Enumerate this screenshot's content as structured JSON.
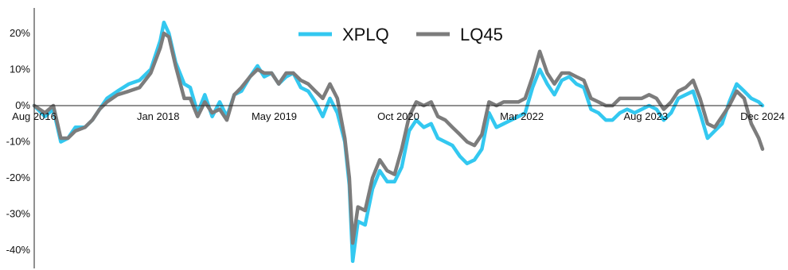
{
  "chart_data": {
    "type": "line",
    "title": "",
    "xlabel": "",
    "ylabel": "",
    "x_range": [
      "2016-08-01",
      "2024-12-01"
    ],
    "ylim": [
      -45,
      27
    ],
    "yticks": [
      20,
      10,
      0,
      -10,
      -20,
      -30,
      -40
    ],
    "ytick_labels": [
      "20%",
      "10%",
      "0%",
      "-10%",
      "-20%",
      "-30%",
      "-40%"
    ],
    "xticks": [
      "2016-08-01",
      "2018-01-01",
      "2019-05-01",
      "2020-10-01",
      "2022-03-01",
      "2023-08-01",
      "2024-12-01"
    ],
    "xtick_labels": [
      "Aug 2016",
      "Jan 2018",
      "May 2019",
      "Oct 2020",
      "Mar 2022",
      "Aug 2023",
      "Dec 2024"
    ],
    "grid": false,
    "legend_position": "top-center",
    "series": [
      {
        "name": "XPLQ",
        "color": "#33c8f0",
        "points": [
          [
            "2016-08-01",
            0
          ],
          [
            "2016-09-15",
            -3
          ],
          [
            "2016-10-20",
            -1
          ],
          [
            "2016-11-20",
            -10
          ],
          [
            "2016-12-20",
            -9
          ],
          [
            "2017-01-20",
            -6
          ],
          [
            "2017-03-01",
            -6
          ],
          [
            "2017-04-01",
            -4
          ],
          [
            "2017-05-01",
            -1
          ],
          [
            "2017-06-01",
            2
          ],
          [
            "2017-07-15",
            4
          ],
          [
            "2017-09-01",
            6
          ],
          [
            "2017-10-15",
            7
          ],
          [
            "2017-12-01",
            10
          ],
          [
            "2018-01-10",
            18
          ],
          [
            "2018-01-25",
            23
          ],
          [
            "2018-02-15",
            20
          ],
          [
            "2018-03-15",
            12
          ],
          [
            "2018-04-20",
            6
          ],
          [
            "2018-05-15",
            5
          ],
          [
            "2018-06-15",
            -2
          ],
          [
            "2018-07-15",
            3
          ],
          [
            "2018-08-15",
            -3
          ],
          [
            "2018-09-15",
            1
          ],
          [
            "2018-10-15",
            -3
          ],
          [
            "2018-11-15",
            3
          ],
          [
            "2018-12-15",
            4
          ],
          [
            "2019-01-20",
            8
          ],
          [
            "2019-02-20",
            11
          ],
          [
            "2019-03-20",
            8
          ],
          [
            "2019-04-20",
            9
          ],
          [
            "2019-05-20",
            6
          ],
          [
            "2019-06-20",
            8
          ],
          [
            "2019-07-20",
            9
          ],
          [
            "2019-08-20",
            5
          ],
          [
            "2019-09-20",
            4
          ],
          [
            "2019-10-20",
            1
          ],
          [
            "2019-11-20",
            -3
          ],
          [
            "2019-12-20",
            2
          ],
          [
            "2020-01-20",
            -2
          ],
          [
            "2020-02-20",
            -10
          ],
          [
            "2020-03-10",
            -22
          ],
          [
            "2020-03-24",
            -43
          ],
          [
            "2020-04-15",
            -32
          ],
          [
            "2020-05-15",
            -33
          ],
          [
            "2020-06-15",
            -23
          ],
          [
            "2020-07-15",
            -18
          ],
          [
            "2020-08-15",
            -21
          ],
          [
            "2020-09-15",
            -21
          ],
          [
            "2020-10-15",
            -17
          ],
          [
            "2020-11-15",
            -7
          ],
          [
            "2020-12-15",
            -4
          ],
          [
            "2021-01-15",
            -6
          ],
          [
            "2021-02-15",
            -5
          ],
          [
            "2021-03-15",
            -9
          ],
          [
            "2021-04-15",
            -10
          ],
          [
            "2021-05-15",
            -11
          ],
          [
            "2021-06-15",
            -14
          ],
          [
            "2021-07-15",
            -16
          ],
          [
            "2021-08-15",
            -15
          ],
          [
            "2021-09-15",
            -12
          ],
          [
            "2021-10-15",
            -2
          ],
          [
            "2021-11-15",
            -6
          ],
          [
            "2021-12-15",
            -5
          ],
          [
            "2022-01-15",
            -4
          ],
          [
            "2022-02-15",
            -3
          ],
          [
            "2022-03-15",
            -2
          ],
          [
            "2022-04-15",
            5
          ],
          [
            "2022-05-15",
            10
          ],
          [
            "2022-06-15",
            6
          ],
          [
            "2022-07-15",
            3
          ],
          [
            "2022-08-15",
            7
          ],
          [
            "2022-09-15",
            8
          ],
          [
            "2022-10-15",
            6
          ],
          [
            "2022-11-15",
            5
          ],
          [
            "2022-12-15",
            -1
          ],
          [
            "2023-01-15",
            -2
          ],
          [
            "2023-02-15",
            -4
          ],
          [
            "2023-03-15",
            -4
          ],
          [
            "2023-04-15",
            -2
          ],
          [
            "2023-05-15",
            -1
          ],
          [
            "2023-06-15",
            -2
          ],
          [
            "2023-07-15",
            -1
          ],
          [
            "2023-08-15",
            0
          ],
          [
            "2023-09-15",
            -1
          ],
          [
            "2023-10-15",
            -4
          ],
          [
            "2023-11-15",
            -2
          ],
          [
            "2023-12-15",
            2
          ],
          [
            "2024-01-15",
            3
          ],
          [
            "2024-02-15",
            4
          ],
          [
            "2024-03-15",
            -2
          ],
          [
            "2024-04-15",
            -9
          ],
          [
            "2024-05-15",
            -7
          ],
          [
            "2024-06-15",
            -5
          ],
          [
            "2024-07-15",
            1
          ],
          [
            "2024-08-15",
            6
          ],
          [
            "2024-09-15",
            4
          ],
          [
            "2024-10-15",
            2
          ],
          [
            "2024-11-15",
            1
          ],
          [
            "2024-12-01",
            0
          ]
        ]
      },
      {
        "name": "LQ45",
        "color": "#7c7c7c",
        "points": [
          [
            "2016-08-01",
            0
          ],
          [
            "2016-09-15",
            -2
          ],
          [
            "2016-10-20",
            0
          ],
          [
            "2016-11-20",
            -9
          ],
          [
            "2016-12-20",
            -9
          ],
          [
            "2017-01-20",
            -7
          ],
          [
            "2017-03-01",
            -6
          ],
          [
            "2017-04-01",
            -4
          ],
          [
            "2017-05-01",
            -1
          ],
          [
            "2017-06-01",
            1
          ],
          [
            "2017-07-15",
            3
          ],
          [
            "2017-09-01",
            4
          ],
          [
            "2017-10-15",
            5
          ],
          [
            "2017-12-01",
            9
          ],
          [
            "2018-01-10",
            16
          ],
          [
            "2018-01-25",
            20
          ],
          [
            "2018-02-15",
            19
          ],
          [
            "2018-03-15",
            11
          ],
          [
            "2018-04-20",
            2
          ],
          [
            "2018-05-15",
            2
          ],
          [
            "2018-06-15",
            -3
          ],
          [
            "2018-07-15",
            1
          ],
          [
            "2018-08-15",
            -2
          ],
          [
            "2018-09-15",
            -1
          ],
          [
            "2018-10-15",
            -4
          ],
          [
            "2018-11-15",
            3
          ],
          [
            "2018-12-15",
            5
          ],
          [
            "2019-01-20",
            8
          ],
          [
            "2019-02-20",
            10
          ],
          [
            "2019-03-20",
            9
          ],
          [
            "2019-04-20",
            9
          ],
          [
            "2019-05-20",
            6
          ],
          [
            "2019-06-20",
            9
          ],
          [
            "2019-07-20",
            9
          ],
          [
            "2019-08-20",
            7
          ],
          [
            "2019-09-20",
            6
          ],
          [
            "2019-10-20",
            4
          ],
          [
            "2019-11-20",
            2
          ],
          [
            "2019-12-20",
            6
          ],
          [
            "2020-01-20",
            2
          ],
          [
            "2020-02-20",
            -9
          ],
          [
            "2020-03-10",
            -20
          ],
          [
            "2020-03-24",
            -38
          ],
          [
            "2020-04-15",
            -28
          ],
          [
            "2020-05-15",
            -29
          ],
          [
            "2020-06-15",
            -20
          ],
          [
            "2020-07-15",
            -15
          ],
          [
            "2020-08-15",
            -18
          ],
          [
            "2020-09-15",
            -19
          ],
          [
            "2020-10-15",
            -12
          ],
          [
            "2020-11-15",
            -3
          ],
          [
            "2020-12-15",
            1
          ],
          [
            "2021-01-15",
            0
          ],
          [
            "2021-02-15",
            1
          ],
          [
            "2021-03-15",
            -3
          ],
          [
            "2021-04-15",
            -4
          ],
          [
            "2021-05-15",
            -6
          ],
          [
            "2021-06-15",
            -8
          ],
          [
            "2021-07-15",
            -10
          ],
          [
            "2021-08-15",
            -11
          ],
          [
            "2021-09-15",
            -8
          ],
          [
            "2021-10-15",
            1
          ],
          [
            "2021-11-15",
            0
          ],
          [
            "2021-12-15",
            1
          ],
          [
            "2022-01-15",
            1
          ],
          [
            "2022-02-15",
            1
          ],
          [
            "2022-03-15",
            2
          ],
          [
            "2022-04-15",
            8
          ],
          [
            "2022-05-15",
            15
          ],
          [
            "2022-06-15",
            9
          ],
          [
            "2022-07-15",
            6
          ],
          [
            "2022-08-15",
            9
          ],
          [
            "2022-09-15",
            9
          ],
          [
            "2022-10-15",
            8
          ],
          [
            "2022-11-15",
            7
          ],
          [
            "2022-12-15",
            2
          ],
          [
            "2023-01-15",
            1
          ],
          [
            "2023-02-15",
            0
          ],
          [
            "2023-03-15",
            0
          ],
          [
            "2023-04-15",
            2
          ],
          [
            "2023-05-15",
            2
          ],
          [
            "2023-06-15",
            2
          ],
          [
            "2023-07-15",
            2
          ],
          [
            "2023-08-15",
            3
          ],
          [
            "2023-09-15",
            2
          ],
          [
            "2023-10-15",
            -1
          ],
          [
            "2023-11-15",
            1
          ],
          [
            "2023-12-15",
            4
          ],
          [
            "2024-01-15",
            5
          ],
          [
            "2024-02-15",
            7
          ],
          [
            "2024-03-15",
            2
          ],
          [
            "2024-04-15",
            -5
          ],
          [
            "2024-05-15",
            -6
          ],
          [
            "2024-06-15",
            -3
          ],
          [
            "2024-07-15",
            0
          ],
          [
            "2024-08-15",
            4
          ],
          [
            "2024-09-15",
            2
          ],
          [
            "2024-10-15",
            -5
          ],
          [
            "2024-11-15",
            -9
          ],
          [
            "2024-12-01",
            -12
          ]
        ]
      }
    ]
  }
}
